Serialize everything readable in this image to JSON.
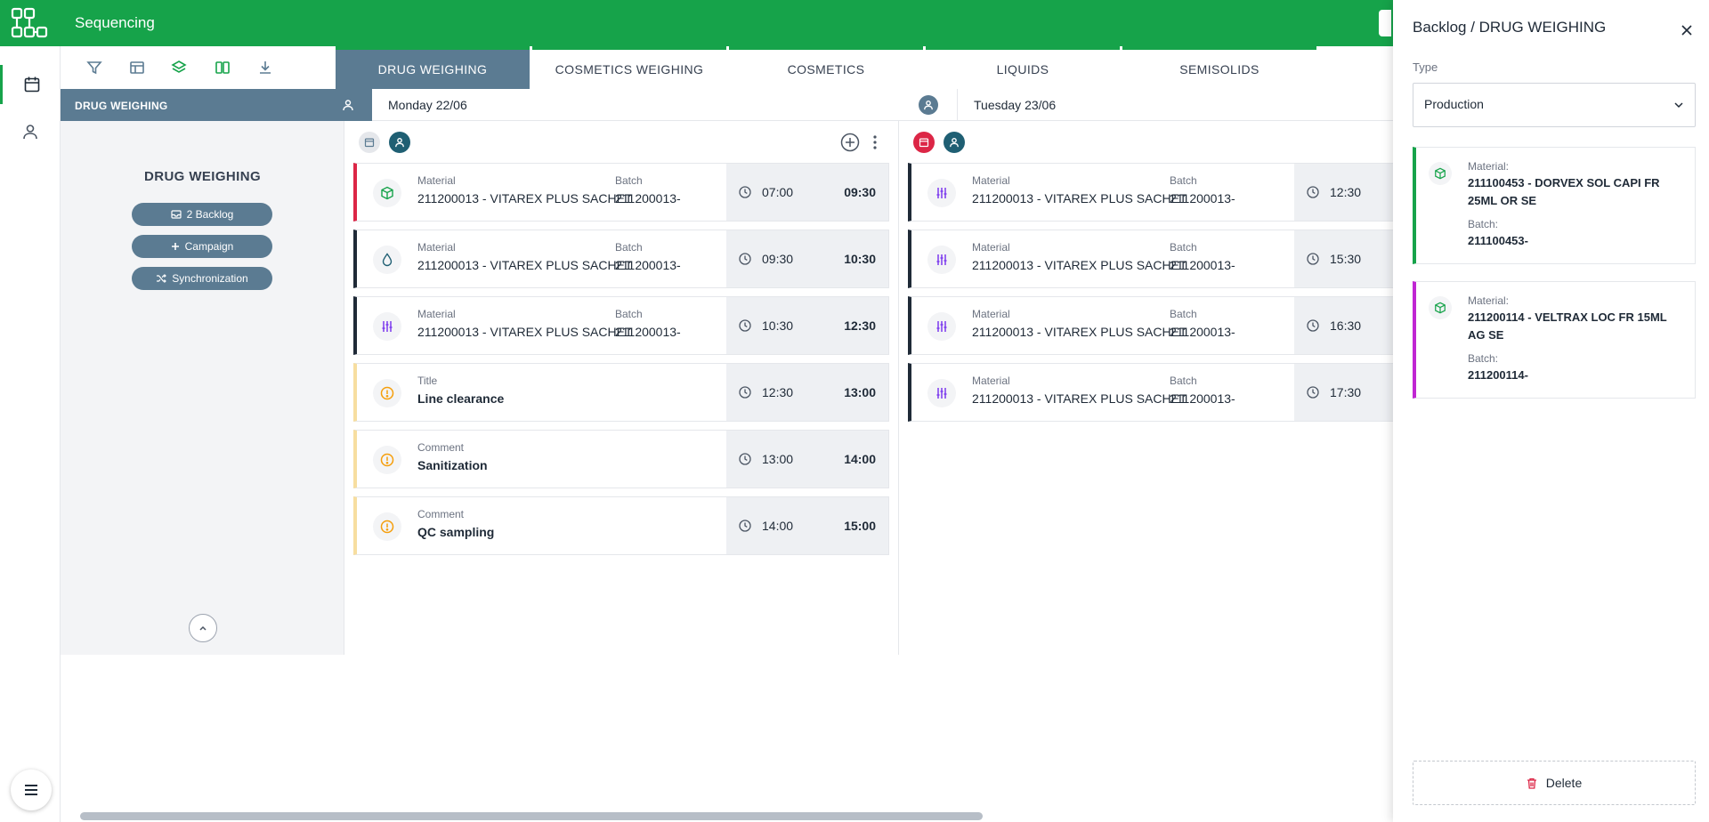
{
  "app": {
    "title": "Sequencing"
  },
  "toolbar": {
    "icons": [
      "filter-icon",
      "table-layout-icon",
      "layers-icon",
      "columns-icon",
      "download-icon"
    ]
  },
  "tabs": [
    {
      "label": "DRUG WEIGHING",
      "active": true
    },
    {
      "label": "COSMETICS WEIGHING",
      "active": false
    },
    {
      "label": "COSMETICS",
      "active": false
    },
    {
      "label": "LIQUIDS",
      "active": false
    },
    {
      "label": "SEMISOLIDS",
      "active": false
    }
  ],
  "area": {
    "header": "DRUG WEIGHING",
    "name": "DRUG WEIGHING",
    "buttons": {
      "backlog": "2 Backlog",
      "campaign": "Campaign",
      "sync": "Synchronization"
    }
  },
  "days": [
    {
      "label": "Monday 22/06",
      "cards": [
        {
          "kind": "production",
          "label1": "Material",
          "value1": "211200013 - VITAREX PLUS SACHET",
          "label2": "Batch",
          "value2": "211200013-",
          "start": "07:00",
          "end": "09:30",
          "icon": "box-icon",
          "color": "#dc2646"
        },
        {
          "kind": "production",
          "label1": "Material",
          "value1": "211200013 - VITAREX PLUS SACHET",
          "label2": "Batch",
          "value2": "211200013-",
          "start": "09:30",
          "end": "10:30",
          "icon": "drop-icon",
          "color": "#1f2a37"
        },
        {
          "kind": "production",
          "label1": "Material",
          "value1": "211200013 - VITAREX PLUS SACHET",
          "label2": "Batch",
          "value2": "211200013-",
          "start": "10:30",
          "end": "12:30",
          "icon": "sliders-icon",
          "color": "#1f2a37"
        },
        {
          "kind": "event",
          "label1": "Title",
          "value1": "Line clearance",
          "start": "12:30",
          "end": "13:00",
          "icon": "alert-icon",
          "color": "#f7dea0"
        },
        {
          "kind": "event",
          "label1": "Comment",
          "value1": "Sanitization",
          "start": "13:00",
          "end": "14:00",
          "icon": "alert-icon",
          "color": "#f7dea0"
        },
        {
          "kind": "event",
          "label1": "Comment",
          "value1": "QC sampling",
          "start": "14:00",
          "end": "15:00",
          "icon": "alert-icon",
          "color": "#f7dea0"
        }
      ]
    },
    {
      "label": "Tuesday 23/06",
      "cards": [
        {
          "kind": "production",
          "label1": "Material",
          "value1": "211200013 - VITAREX PLUS SACHET",
          "label2": "Batch",
          "value2": "211200013-",
          "start": "12:30",
          "icon": "sliders-icon",
          "color": "#1f2a37"
        },
        {
          "kind": "production",
          "label1": "Material",
          "value1": "211200013 - VITAREX PLUS SACHET",
          "label2": "Batch",
          "value2": "211200013-",
          "start": "15:30",
          "icon": "sliders-icon",
          "color": "#1f2a37"
        },
        {
          "kind": "production",
          "label1": "Material",
          "value1": "211200013 - VITAREX PLUS SACHET",
          "label2": "Batch",
          "value2": "211200013-",
          "start": "16:30",
          "icon": "sliders-icon",
          "color": "#1f2a37"
        },
        {
          "kind": "production",
          "label1": "Material",
          "value1": "211200013 - VITAREX PLUS SACHET",
          "label2": "Batch",
          "value2": "211200013-",
          "start": "17:30",
          "icon": "sliders-icon",
          "color": "#1f2a37"
        }
      ]
    }
  ],
  "drawer": {
    "title": "Backlog / DRUG WEIGHING",
    "type_label": "Type",
    "type_value": "Production",
    "items": [
      {
        "material_label": "Material:",
        "material": "211100453 - DORVEX SOL CAPI FR 25ML OR SE",
        "batch_label": "Batch:",
        "batch": "211100453-",
        "color": "#16a34a",
        "icon": "box-icon"
      },
      {
        "material_label": "Material:",
        "material": "211200114 - VELTRAX LOC FR 15ML AG SE",
        "batch_label": "Batch:",
        "batch": "211200114-",
        "color": "#c026d3",
        "icon": "box-icon"
      }
    ],
    "delete_label": "Delete"
  },
  "colors": {
    "brand": "#16a34a",
    "slate": "#5b7b92",
    "danger": "#dc2646",
    "warning": "#f59e0b"
  }
}
